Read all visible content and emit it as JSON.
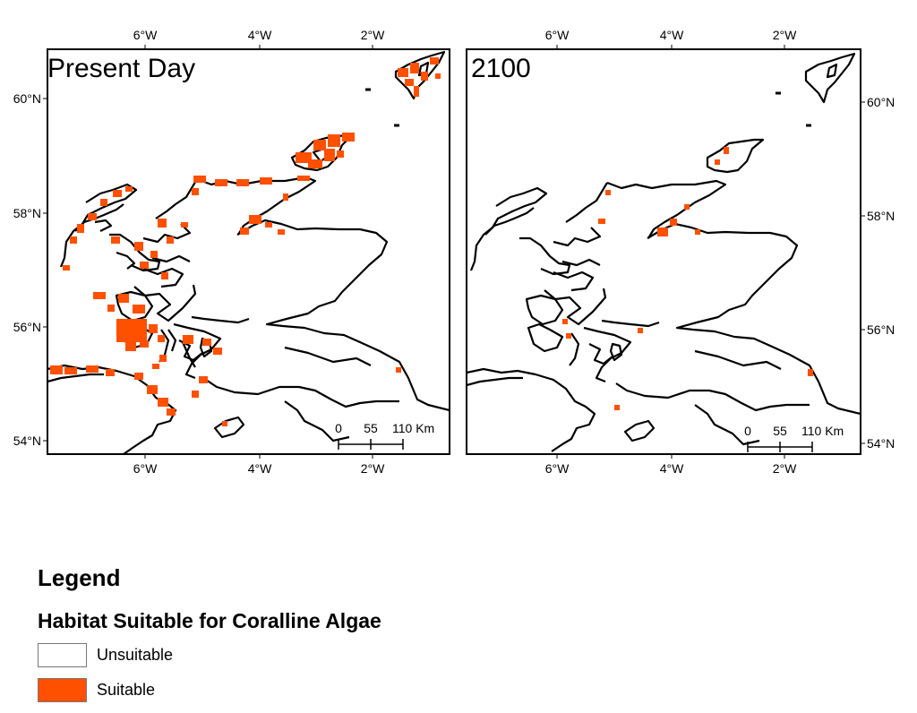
{
  "colors": {
    "suitable": "#ff5000",
    "unsuitable": "#ffffff",
    "coastline": "#000000"
  },
  "maps": [
    {
      "title": "Present Day",
      "top_ticks": [
        "6°W",
        "4°W",
        "2°W"
      ],
      "bottom_ticks": [
        "6°W",
        "4°W",
        "2°W"
      ],
      "lat_ticks": [
        "60°N",
        "58°N",
        "56°N",
        "54°N"
      ],
      "lat_tick_side": "left",
      "scalebar": {
        "labels": [
          "0",
          "55",
          "110 Km"
        ]
      },
      "suitable_extent": "extensive"
    },
    {
      "title": "2100",
      "top_ticks": [
        "6°W",
        "4°W",
        "2°W"
      ],
      "bottom_ticks": [
        "6°W",
        "4°W",
        "2°W"
      ],
      "lat_ticks": [
        "60°N",
        "58°N",
        "56°N",
        "54°N"
      ],
      "lat_tick_side": "right",
      "scalebar": {
        "labels": [
          "0",
          "55",
          "110 Km"
        ]
      },
      "suitable_extent": "sparse"
    }
  ],
  "legend": {
    "heading": "Legend",
    "subheading": "Habitat Suitable for Coralline Algae",
    "items": [
      {
        "label": "Unsuitable",
        "color": "#ffffff"
      },
      {
        "label": "Suitable",
        "color": "#ff5000"
      }
    ]
  }
}
